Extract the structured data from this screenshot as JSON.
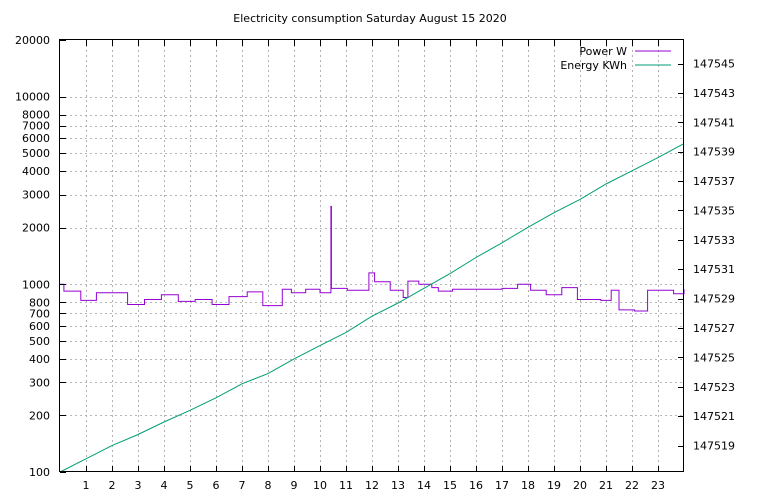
{
  "chart_data": {
    "type": "line",
    "title": "Electricity consumption Saturday August 15 2020",
    "x_ticks": [
      1,
      2,
      3,
      4,
      5,
      6,
      7,
      8,
      9,
      10,
      11,
      12,
      13,
      14,
      15,
      16,
      17,
      18,
      19,
      20,
      21,
      22,
      23
    ],
    "xlim": [
      0,
      24
    ],
    "y_left": {
      "scale": "log",
      "ylim": [
        100,
        20000
      ],
      "ticks": [
        100,
        200,
        300,
        400,
        500,
        600,
        700,
        800,
        1000,
        2000,
        3000,
        4000,
        5000,
        6000,
        7000,
        8000,
        10000,
        20000
      ]
    },
    "y_right": {
      "scale": "linear",
      "ylim": [
        147517.2,
        147546.6
      ],
      "ticks": [
        147519,
        147521,
        147523,
        147525,
        147527,
        147529,
        147531,
        147533,
        147535,
        147537,
        147539,
        147541,
        147543,
        147545
      ]
    },
    "grid": true,
    "legend_position": "top-right",
    "series": [
      {
        "name": "Power W",
        "axis": "left",
        "color": "#9400d3",
        "step": true,
        "x": [
          0,
          0.15,
          0.8,
          1.4,
          2.6,
          3.25,
          3.9,
          4.55,
          5.2,
          5.85,
          6.5,
          7.2,
          7.8,
          8.3,
          8.55,
          8.9,
          9.45,
          10.0,
          10.42,
          10.44,
          10.47,
          11.05,
          11.88,
          12.1,
          12.7,
          13.2,
          13.38,
          13.8,
          14.3,
          14.55,
          15.1,
          15.6,
          16.1,
          16.5,
          17.0,
          17.6,
          18.1,
          18.7,
          19.3,
          19.9,
          20.2,
          20.8,
          21.2,
          21.5,
          22.1,
          22.4,
          22.6,
          23.1,
          23.6,
          24.0
        ],
        "values": [
          1000,
          920,
          820,
          900,
          780,
          830,
          880,
          810,
          830,
          780,
          860,
          910,
          770,
          770,
          940,
          900,
          940,
          900,
          2600,
          950,
          950,
          930,
          1150,
          1030,
          930,
          850,
          1040,
          1000,
          960,
          920,
          940,
          940,
          940,
          940,
          950,
          1000,
          930,
          880,
          960,
          830,
          830,
          820,
          930,
          730,
          720,
          720,
          930,
          930,
          890,
          940
        ]
      },
      {
        "name": "Energy KWh",
        "axis": "right",
        "color": "#009e73",
        "step": false,
        "x": [
          0,
          1,
          2,
          3,
          4,
          5,
          6,
          7,
          8,
          9,
          10,
          11,
          12,
          13,
          14,
          15,
          16,
          17,
          18,
          19,
          20,
          21,
          22,
          23,
          24
        ],
        "values": [
          147517.2,
          147518.1,
          147519.0,
          147519.75,
          147520.6,
          147521.4,
          147522.25,
          147523.2,
          147523.9,
          147524.9,
          147525.8,
          147526.7,
          147527.8,
          147528.7,
          147529.7,
          147530.7,
          147531.8,
          147532.8,
          147533.85,
          147534.85,
          147535.75,
          147536.8,
          147537.7,
          147538.6,
          147539.55
        ]
      }
    ]
  }
}
